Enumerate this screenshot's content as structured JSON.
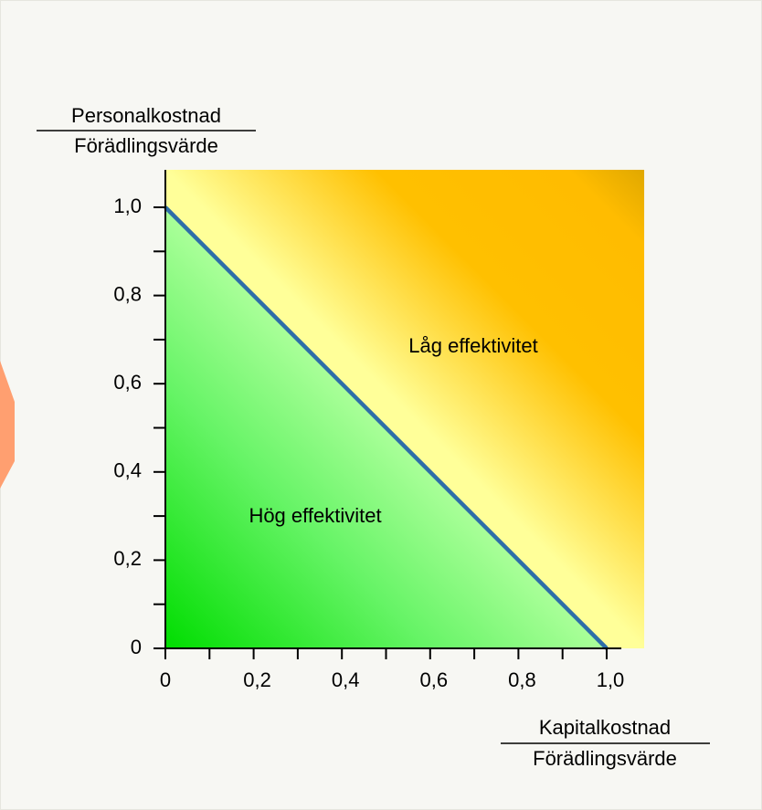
{
  "chart_data": {
    "type": "line",
    "y_label_numerator": "Personalkostnad",
    "y_label_denominator": "Förädlingsvärde",
    "x_label_numerator": "Kapitalkostnad",
    "x_label_denominator": "Förädlingsvärde",
    "annotations": [
      "Låg effektivitet",
      "Hög effektivitet"
    ],
    "x": [
      0,
      1
    ],
    "series": [
      {
        "color": "#2e6ea8",
        "values": [
          1,
          0
        ]
      }
    ],
    "xlim": [
      0,
      1.085
    ],
    "ylim": [
      0,
      1.085
    ],
    "xticks": [
      0,
      {
        "value": 0.2,
        "label": "0,2"
      },
      {
        "value": 0.4,
        "label": "0,4"
      },
      {
        "value": 0.6,
        "label": "0,6"
      },
      {
        "value": 0.8,
        "label": "0,8"
      },
      {
        "value": 1,
        "label": "1,0"
      }
    ],
    "yticks": [
      0,
      {
        "value": 0.2,
        "label": "0,2"
      },
      {
        "value": 0.4,
        "label": "0,4"
      },
      {
        "value": 0.6,
        "label": "0,6"
      },
      {
        "value": 0.8,
        "label": "0,8"
      },
      {
        "value": 1,
        "label": "1,0"
      }
    ],
    "minor_ticks": [
      0.1,
      0.3,
      0.5,
      0.7,
      0.9
    ]
  }
}
